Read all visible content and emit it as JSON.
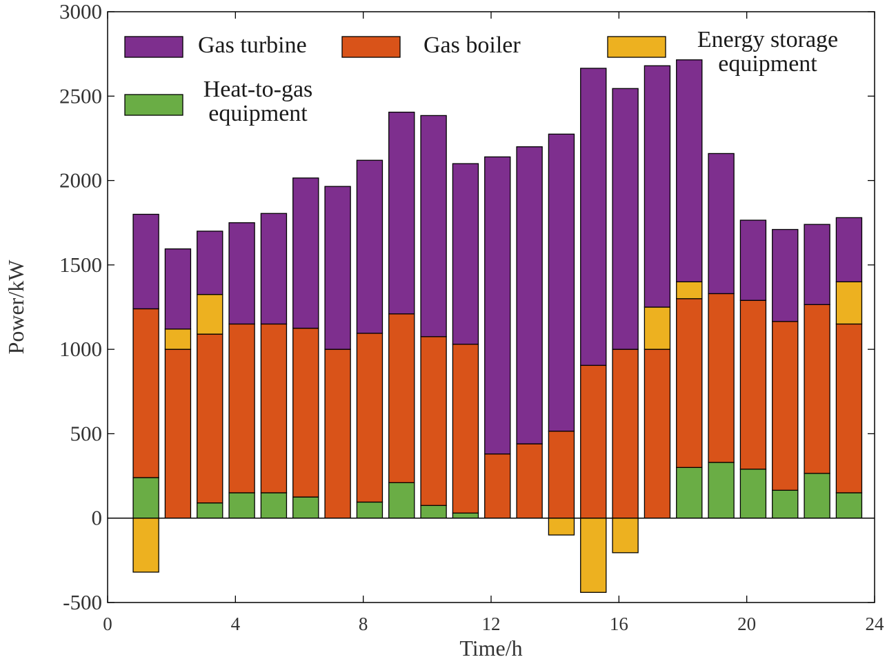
{
  "chart_data": {
    "type": "bar",
    "stacked": true,
    "title": "",
    "xlabel": "Time/h",
    "ylabel": "Power/kW",
    "xlim": [
      0,
      24
    ],
    "ylim": [
      -500,
      3000
    ],
    "xticks": [
      "0",
      "4",
      "8",
      "12",
      "16",
      "20",
      "24"
    ],
    "yticks": [
      "-500",
      "0",
      "500",
      "1000",
      "1500",
      "2000",
      "2500",
      "3000"
    ],
    "grid": false,
    "legend_position": "top-inside",
    "colors": {
      "Gas turbine": "#7e2f8e",
      "Gas boiler": "#d95319",
      "Energy storage equipment": "#edb120",
      "Heat-to-gas equipment": "#6aad45"
    },
    "legend": [
      {
        "series": "Gas turbine",
        "lines": [
          "Gas turbine"
        ]
      },
      {
        "series": "Gas boiler",
        "lines": [
          "Gas boiler"
        ]
      },
      {
        "series": "Energy storage equipment",
        "lines": [
          "Energy storage",
          "equipment"
        ]
      },
      {
        "series": "Heat-to-gas equipment",
        "lines": [
          "Heat-to-gas",
          "equipment"
        ]
      }
    ],
    "x": [
      1.2,
      2.2,
      3.2,
      4.2,
      5.2,
      6.2,
      7.2,
      8.2,
      9.2,
      10.2,
      11.2,
      12.2,
      13.2,
      14.2,
      15.2,
      16.2,
      17.2,
      18.2,
      19.2,
      20.2,
      21.2,
      22.2,
      23.2
    ],
    "series": [
      {
        "name": "Heat-to-gas equipment",
        "values": [
          240,
          0,
          90,
          150,
          150,
          125,
          0,
          95,
          210,
          75,
          30,
          0,
          0,
          0,
          0,
          0,
          0,
          300,
          330,
          290,
          165,
          265,
          150
        ]
      },
      {
        "name": "Gas boiler",
        "values": [
          1000,
          1000,
          1000,
          1000,
          1000,
          1000,
          1000,
          1000,
          1000,
          1000,
          1000,
          380,
          440,
          515,
          905,
          1000,
          1000,
          1000,
          1000,
          1000,
          1000,
          1000,
          1000
        ]
      },
      {
        "name": "Energy storage equipment",
        "values": [
          -320,
          120,
          235,
          0,
          0,
          0,
          0,
          0,
          0,
          0,
          0,
          0,
          0,
          -100,
          -440,
          -205,
          250,
          100,
          0,
          0,
          0,
          0,
          250
        ]
      },
      {
        "name": "Gas turbine",
        "values": [
          560,
          475,
          375,
          600,
          655,
          890,
          965,
          1025,
          1195,
          1310,
          1070,
          1760,
          1760,
          1760,
          1760,
          1545,
          1430,
          1315,
          830,
          475,
          545,
          475,
          380
        ]
      }
    ]
  }
}
